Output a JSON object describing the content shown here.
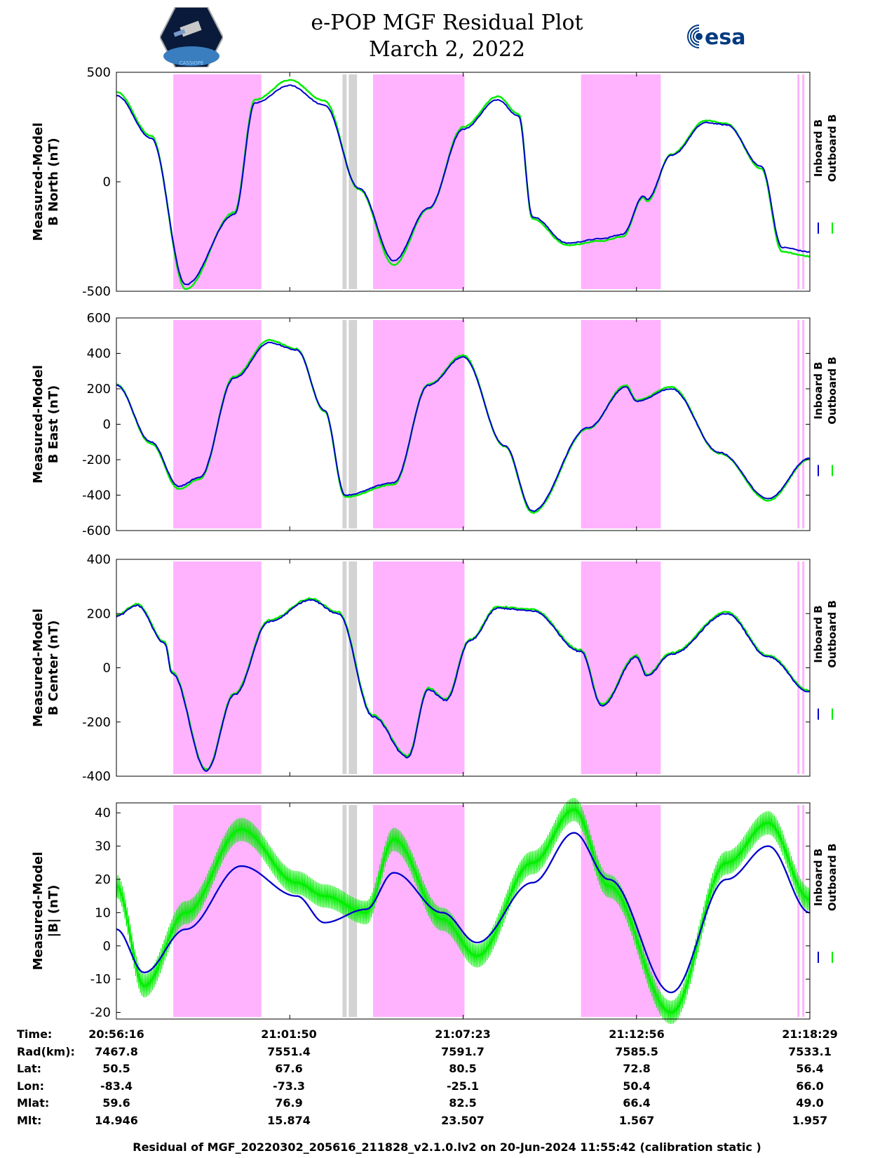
{
  "header": {
    "title_line1": "e-POP MGF Residual Plot",
    "title_line2": "March 2, 2022",
    "logo_left_text": "CASSIOPE",
    "logo_right_text": "esa"
  },
  "colors": {
    "inboard": "#0000cc",
    "outboard": "#00ee00",
    "magenta_band": "#ffb3ff",
    "gray_band": "#d3d3d3"
  },
  "chart_data": [
    {
      "type": "line",
      "title": "",
      "ylabel_line1": "Measured-Model",
      "ylabel_line2": "B North (nT)",
      "ylim": [
        -500,
        500
      ],
      "yticks": [
        500,
        0,
        -500
      ],
      "legend": [
        "Inboard B",
        "Outboard B"
      ],
      "series": [
        {
          "name": "Inboard B",
          "t": [
            0,
            0.05,
            0.1,
            0.17,
            0.2,
            0.25,
            0.3,
            0.35,
            0.4,
            0.45,
            0.5,
            0.55,
            0.58,
            0.6,
            0.65,
            0.7,
            0.73,
            0.76,
            0.765,
            0.8,
            0.85,
            0.88,
            0.93,
            0.96,
            1.0
          ],
          "values": [
            395,
            200,
            -470,
            -150,
            360,
            440,
            350,
            -30,
            -360,
            -120,
            240,
            375,
            300,
            -160,
            -280,
            -260,
            -240,
            -65,
            -80,
            120,
            270,
            260,
            70,
            -300,
            -320
          ]
        },
        {
          "name": "Outboard B",
          "t": [
            0,
            0.05,
            0.1,
            0.17,
            0.2,
            0.25,
            0.3,
            0.35,
            0.4,
            0.45,
            0.5,
            0.55,
            0.58,
            0.6,
            0.65,
            0.7,
            0.73,
            0.76,
            0.765,
            0.8,
            0.85,
            0.88,
            0.93,
            0.96,
            1.0
          ],
          "values": [
            410,
            210,
            -490,
            -140,
            375,
            465,
            370,
            -35,
            -380,
            -125,
            250,
            390,
            310,
            -170,
            -290,
            -270,
            -250,
            -70,
            -90,
            125,
            280,
            265,
            60,
            -320,
            -340
          ]
        }
      ]
    },
    {
      "type": "line",
      "title": "",
      "ylabel_line1": "Measured-Model",
      "ylabel_line2": "B East (nT)",
      "ylim": [
        -600,
        600
      ],
      "yticks": [
        600,
        400,
        200,
        0,
        -200,
        -400,
        -600
      ],
      "legend": [
        "Inboard B",
        "Outboard B"
      ],
      "series": [
        {
          "name": "Inboard B",
          "t": [
            0,
            0.05,
            0.09,
            0.12,
            0.17,
            0.22,
            0.26,
            0.3,
            0.33,
            0.4,
            0.45,
            0.5,
            0.56,
            0.6,
            0.68,
            0.735,
            0.75,
            0.8,
            0.87,
            0.94,
            1.0
          ],
          "values": [
            220,
            -100,
            -350,
            -300,
            260,
            460,
            420,
            80,
            -400,
            -330,
            220,
            380,
            -120,
            -490,
            -20,
            210,
            130,
            200,
            -160,
            -420,
            -190
          ]
        },
        {
          "name": "Outboard B",
          "t": [
            0,
            0.05,
            0.09,
            0.12,
            0.17,
            0.22,
            0.26,
            0.3,
            0.33,
            0.4,
            0.45,
            0.5,
            0.56,
            0.6,
            0.68,
            0.735,
            0.75,
            0.8,
            0.87,
            0.94,
            1.0
          ],
          "values": [
            225,
            -110,
            -365,
            -310,
            270,
            475,
            425,
            75,
            -410,
            -340,
            225,
            390,
            -125,
            -500,
            -25,
            220,
            135,
            210,
            -165,
            -430,
            -195
          ]
        }
      ]
    },
    {
      "type": "line",
      "title": "",
      "ylabel_line1": "Measured-Model",
      "ylabel_line2": "B Center (nT)",
      "ylim": [
        -400,
        400
      ],
      "yticks": [
        400,
        200,
        0,
        -200,
        -400
      ],
      "legend": [
        "Inboard B",
        "Outboard B"
      ],
      "series": [
        {
          "name": "Inboard B",
          "t": [
            0,
            0.03,
            0.07,
            0.08,
            0.13,
            0.17,
            0.22,
            0.28,
            0.32,
            0.37,
            0.42,
            0.45,
            0.475,
            0.51,
            0.55,
            0.6,
            0.67,
            0.7,
            0.75,
            0.765,
            0.8,
            0.88,
            0.94,
            1.0
          ],
          "values": [
            190,
            230,
            90,
            -20,
            -380,
            -100,
            170,
            250,
            200,
            -180,
            -330,
            -80,
            -120,
            100,
            220,
            210,
            60,
            -140,
            40,
            -30,
            50,
            200,
            40,
            -90
          ]
        },
        {
          "name": "Outboard B",
          "t": [
            0,
            0.03,
            0.07,
            0.08,
            0.13,
            0.17,
            0.22,
            0.28,
            0.32,
            0.37,
            0.42,
            0.45,
            0.475,
            0.51,
            0.55,
            0.6,
            0.67,
            0.7,
            0.75,
            0.765,
            0.8,
            0.88,
            0.94,
            1.0
          ],
          "values": [
            195,
            235,
            95,
            -15,
            -375,
            -95,
            175,
            255,
            205,
            -175,
            -325,
            -75,
            -115,
            105,
            225,
            215,
            65,
            -135,
            45,
            -25,
            55,
            205,
            45,
            -85
          ]
        }
      ]
    },
    {
      "type": "line",
      "title": "",
      "ylabel_line1": "Measured-Model",
      "ylabel_line2": "|B| (nT)",
      "ylim": [
        -22,
        43
      ],
      "yticks": [
        40,
        30,
        20,
        10,
        0,
        -10,
        -20
      ],
      "legend": [
        "Inboard B",
        "Outboard B"
      ],
      "series": [
        {
          "name": "Inboard B",
          "t": [
            0,
            0.04,
            0.1,
            0.18,
            0.26,
            0.3,
            0.36,
            0.4,
            0.47,
            0.52,
            0.6,
            0.66,
            0.71,
            0.8,
            0.88,
            0.94,
            1.0
          ],
          "values": [
            5,
            -8,
            5,
            24,
            15,
            7,
            11,
            22,
            10,
            1,
            19,
            34,
            20,
            -14,
            20,
            30,
            10
          ]
        },
        {
          "name": "Outboard B",
          "t": [
            0,
            0.04,
            0.1,
            0.18,
            0.26,
            0.3,
            0.36,
            0.4,
            0.47,
            0.52,
            0.6,
            0.66,
            0.71,
            0.8,
            0.88,
            0.94,
            1.0
          ],
          "values": [
            18,
            -12,
            10,
            35,
            19,
            15,
            10,
            32,
            8,
            -3,
            25,
            41,
            18,
            -20,
            25,
            37,
            14
          ]
        }
      ]
    }
  ],
  "bands": {
    "magenta": [
      [
        0.082,
        0.209
      ],
      [
        0.37,
        0.502
      ],
      [
        0.67,
        0.785
      ],
      [
        0.982,
        0.985
      ],
      [
        0.989,
        0.992
      ]
    ],
    "gray": [
      [
        0.326,
        0.332
      ],
      [
        0.335,
        0.347
      ]
    ]
  },
  "time_axis": {
    "labels": [
      "20:56:16",
      "21:01:50",
      "21:07:23",
      "21:12:56",
      "21:18:29"
    ]
  },
  "info_table": {
    "rows": [
      {
        "label": "Time:",
        "values": [
          "20:56:16",
          "21:01:50",
          "21:07:23",
          "21:12:56",
          "21:18:29"
        ]
      },
      {
        "label": "Rad(km):",
        "values": [
          "7467.8",
          "7551.4",
          "7591.7",
          "7585.5",
          "7533.1"
        ]
      },
      {
        "label": "Lat:",
        "values": [
          "50.5",
          "67.6",
          "80.5",
          "72.8",
          "56.4"
        ]
      },
      {
        "label": "Lon:",
        "values": [
          "-83.4",
          "-73.3",
          "-25.1",
          "50.4",
          "66.0"
        ]
      },
      {
        "label": "Mlat:",
        "values": [
          "59.6",
          "76.9",
          "82.5",
          "66.4",
          "49.0"
        ]
      },
      {
        "label": "Mlt:",
        "values": [
          "14.946",
          "15.874",
          "23.507",
          "1.567",
          "1.957"
        ]
      }
    ]
  },
  "footer": {
    "text": "Residual of MGF_20220302_205616_211828_v2.1.0.lv2 on 20-Jun-2024 11:55:42 (calibration static )"
  }
}
